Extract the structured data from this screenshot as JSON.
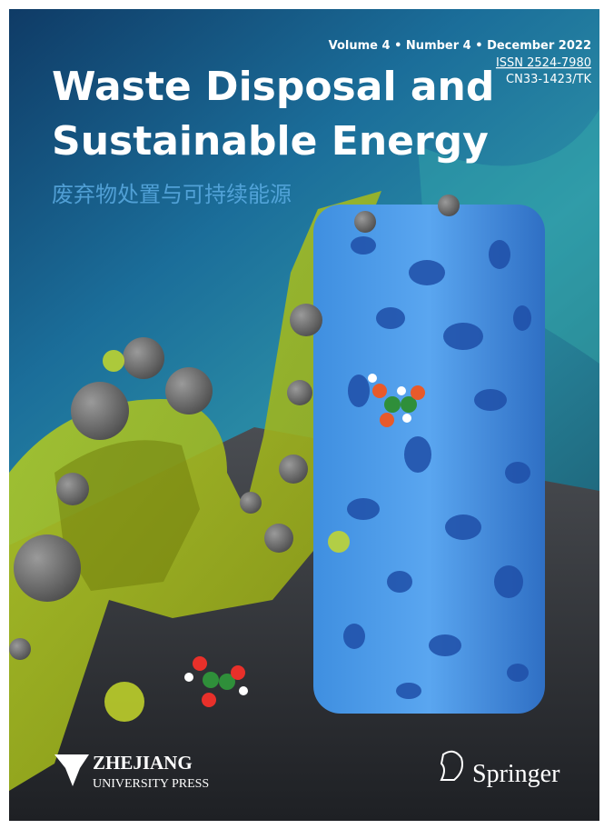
{
  "header": {
    "issue": "Volume 4 • Number 4 • December 2022",
    "issn": "ISSN 2524-7980",
    "cn": "CN33-1423/TK"
  },
  "title": {
    "lines": [
      "Waste Disposal and",
      "Sustainable Energy"
    ],
    "chinese": "废弃物处置与可持续能源"
  },
  "footer": {
    "publisher_name": "ZHEJIANG",
    "publisher_sub": "UNIVERSITY PRESS",
    "partner": "Springer"
  }
}
